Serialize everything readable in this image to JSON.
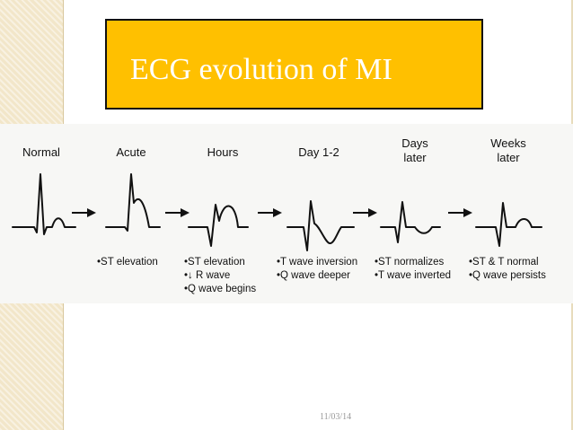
{
  "title": "ECG evolution of MI",
  "footer": {
    "date": "11/03/14"
  },
  "stages": [
    {
      "label_lines": [
        "Normal"
      ],
      "notes": []
    },
    {
      "label_lines": [
        "Acute"
      ],
      "notes": [
        "•ST elevation"
      ]
    },
    {
      "label_lines": [
        "Hours"
      ],
      "notes": [
        "•ST elevation",
        "•↓ R wave",
        "•Q wave begins"
      ]
    },
    {
      "label_lines": [
        "Day 1-2"
      ],
      "notes": [
        "•T wave inversion",
        "•Q wave deeper"
      ]
    },
    {
      "label_lines": [
        "Days",
        "later"
      ],
      "notes": [
        "•ST normalizes",
        "•T wave inverted"
      ]
    },
    {
      "label_lines": [
        "Weeks",
        "later"
      ],
      "notes": [
        "•ST & T normal",
        "•Q wave persists"
      ]
    }
  ],
  "colors": {
    "title_box": "#ffc000",
    "title_text": "#ffffff",
    "side_bar": "#f2e6c9"
  }
}
